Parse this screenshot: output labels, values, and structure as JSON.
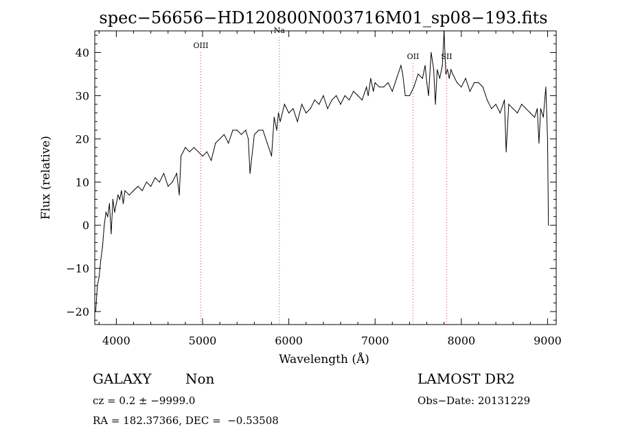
{
  "chart_data": {
    "type": "line",
    "title": "spec−56656−HD120800N003716M01_sp08−193.fits",
    "xlabel": "Wavelength (Å)",
    "ylabel": "Flux (relative)",
    "xlim": [
      3750,
      9100
    ],
    "ylim": [
      -23,
      45
    ],
    "xticks": [
      4000,
      5000,
      6000,
      7000,
      8000,
      9000
    ],
    "yticks": [
      -20,
      -10,
      0,
      10,
      20,
      30,
      40
    ],
    "xtick_labels": [
      "4000",
      "5000",
      "6000",
      "7000",
      "8000",
      "9000"
    ],
    "ytick_labels": [
      "−20",
      "−10",
      "0",
      "10",
      "20",
      "30",
      "40"
    ],
    "lines": [
      {
        "name": "OIII",
        "x": 4980,
        "label_y": 41
      },
      {
        "name": "Na",
        "x": 5890,
        "label_y": 44.5
      },
      {
        "name": "OII",
        "x": 7440,
        "label_y": 38.5
      },
      {
        "name": "SII",
        "x": 7830,
        "label_y": 38.5
      }
    ],
    "line_color": "#cc3333",
    "series": [
      {
        "x": [
          3760,
          3780,
          3800,
          3820,
          3840,
          3860,
          3880,
          3900,
          3920,
          3940,
          3960,
          3980,
          4000,
          4020,
          4040,
          4060,
          4080,
          4100,
          4150,
          4200,
          4250,
          4300,
          4350,
          4400,
          4450,
          4500,
          4550,
          4600,
          4650,
          4700,
          4730,
          4750,
          4800,
          4850,
          4900,
          4950,
          5000,
          5050,
          5100,
          5150,
          5200,
          5250,
          5300,
          5350,
          5400,
          5450,
          5500,
          5530,
          5550,
          5600,
          5650,
          5700,
          5750,
          5800,
          5830,
          5860,
          5880,
          5900,
          5950,
          6000,
          6050,
          6100,
          6150,
          6200,
          6250,
          6300,
          6350,
          6400,
          6450,
          6500,
          6550,
          6600,
          6650,
          6700,
          6750,
          6800,
          6850,
          6900,
          6920,
          6950,
          6980,
          7000,
          7050,
          7100,
          7150,
          7200,
          7250,
          7300,
          7320,
          7350,
          7400,
          7450,
          7500,
          7550,
          7580,
          7600,
          7620,
          7650,
          7680,
          7700,
          7720,
          7750,
          7780,
          7800,
          7820,
          7840,
          7860,
          7880,
          7900,
          7950,
          8000,
          8050,
          8100,
          8150,
          8200,
          8250,
          8300,
          8350,
          8400,
          8450,
          8500,
          8520,
          8550,
          8600,
          8650,
          8700,
          8750,
          8800,
          8850,
          8880,
          8900,
          8920,
          8950,
          8980,
          9000,
          9010
        ],
        "y": [
          -20,
          -14,
          -12,
          -8,
          -5,
          0,
          3,
          2,
          5,
          -2,
          6,
          3,
          5,
          7,
          6,
          8,
          5,
          8,
          7,
          8,
          9,
          8,
          10,
          9,
          11,
          10,
          12,
          9,
          10,
          12,
          7,
          16,
          18,
          17,
          18,
          17,
          16,
          17,
          15,
          19,
          20,
          21,
          19,
          22,
          22,
          21,
          22,
          20,
          12,
          21,
          22,
          22,
          19,
          16,
          25,
          22,
          26,
          24,
          28,
          26,
          27,
          24,
          28,
          26,
          27,
          29,
          28,
          30,
          27,
          29,
          30,
          28,
          30,
          29,
          31,
          30,
          29,
          32,
          30,
          34,
          31,
          33,
          32,
          32,
          33,
          31,
          34,
          37,
          35,
          30,
          30,
          32,
          35,
          34,
          37,
          33,
          30,
          40,
          36,
          28,
          36,
          34,
          37,
          47,
          35,
          36,
          34,
          36,
          35,
          33,
          32,
          34,
          31,
          33,
          33,
          32,
          29,
          27,
          28,
          26,
          29,
          17,
          28,
          27,
          26,
          28,
          27,
          26,
          25,
          27,
          19,
          27,
          25,
          32,
          20,
          0
        ],
        "color": "#000000"
      }
    ],
    "info": {
      "object_class": "GALAXY",
      "subclass": "Non",
      "survey": "LAMOST DR2",
      "cz": "cz = 0.2 ± −9999.0",
      "obs_date": "Obs−Date: 20131229",
      "radec": "RA = 182.37366, DEC =  −0.53508"
    }
  }
}
